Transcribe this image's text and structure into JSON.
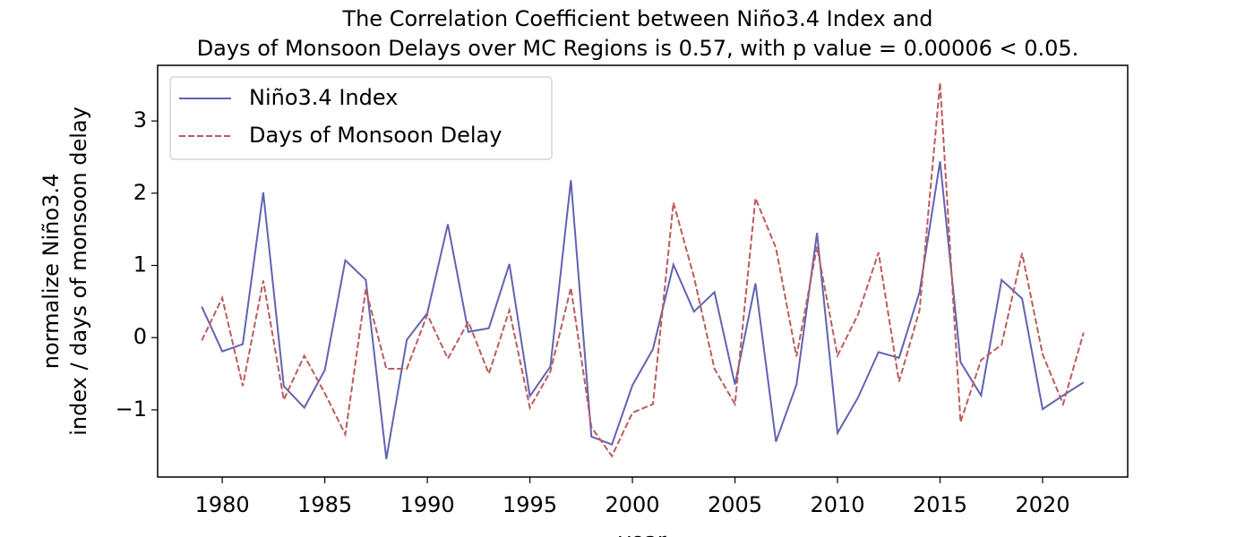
{
  "chart_data": {
    "type": "line",
    "title": [
      "The Correlation Coefficient between Niño3.4 Index and",
      "Days of Monsoon Delays over MC Regions is 0.57, with p value = 0.00006 < 0.05."
    ],
    "xlabel": "year",
    "ylabel": [
      "normalize Niño3.4",
      "index / days of monsoon delay"
    ],
    "x": [
      1979,
      1980,
      1981,
      1982,
      1983,
      1984,
      1985,
      1986,
      1987,
      1988,
      1989,
      1990,
      1991,
      1992,
      1993,
      1994,
      1995,
      1996,
      1997,
      1998,
      1999,
      2000,
      2001,
      2002,
      2003,
      2004,
      2005,
      2006,
      2007,
      2008,
      2009,
      2010,
      2011,
      2012,
      2013,
      2014,
      2015,
      2016,
      2017,
      2018,
      2019,
      2020,
      2021,
      2022
    ],
    "series": [
      {
        "name": "Niño3.4 Index",
        "color": "#6262b3",
        "dash": "solid",
        "values": [
          0.43,
          -0.19,
          -0.09,
          2.01,
          -0.67,
          -0.97,
          -0.45,
          1.07,
          0.8,
          -1.68,
          -0.03,
          0.34,
          1.57,
          0.08,
          0.13,
          1.02,
          -0.81,
          -0.4,
          2.18,
          -1.37,
          -1.48,
          -0.66,
          -0.16,
          1.01,
          0.36,
          0.63,
          -0.65,
          0.75,
          -1.44,
          -0.65,
          1.45,
          -1.32,
          -0.83,
          -0.2,
          -0.28,
          0.63,
          2.44,
          -0.34,
          -0.8,
          0.8,
          0.54,
          -0.99,
          -0.8,
          -0.62
        ]
      },
      {
        "name": "Days of Monsoon Delay",
        "color": "#bb5c5c",
        "dash": "dashed",
        "values": [
          -0.04,
          0.55,
          -0.67,
          0.79,
          -0.86,
          -0.25,
          -0.77,
          -1.34,
          0.67,
          -0.43,
          -0.43,
          0.32,
          -0.29,
          0.22,
          -0.5,
          0.38,
          -0.97,
          -0.47,
          0.69,
          -1.24,
          -1.64,
          -1.04,
          -0.92,
          1.87,
          0.84,
          -0.43,
          -0.92,
          1.93,
          1.24,
          -0.26,
          1.26,
          -0.25,
          0.32,
          1.18,
          -0.61,
          0.38,
          3.53,
          -1.17,
          -0.31,
          -0.1,
          1.17,
          -0.23,
          -0.92,
          0.07
        ]
      }
    ],
    "xlim": [
      1976.85,
      2024.15
    ],
    "ylim": [
      -1.93,
      3.77
    ],
    "xticks": [
      1980,
      1985,
      1990,
      1995,
      2000,
      2005,
      2010,
      2015,
      2020
    ],
    "yticks": [
      {
        "value": -1,
        "label": "−1"
      },
      0,
      1,
      2,
      3
    ],
    "grid": false,
    "legend": "upper-left"
  }
}
